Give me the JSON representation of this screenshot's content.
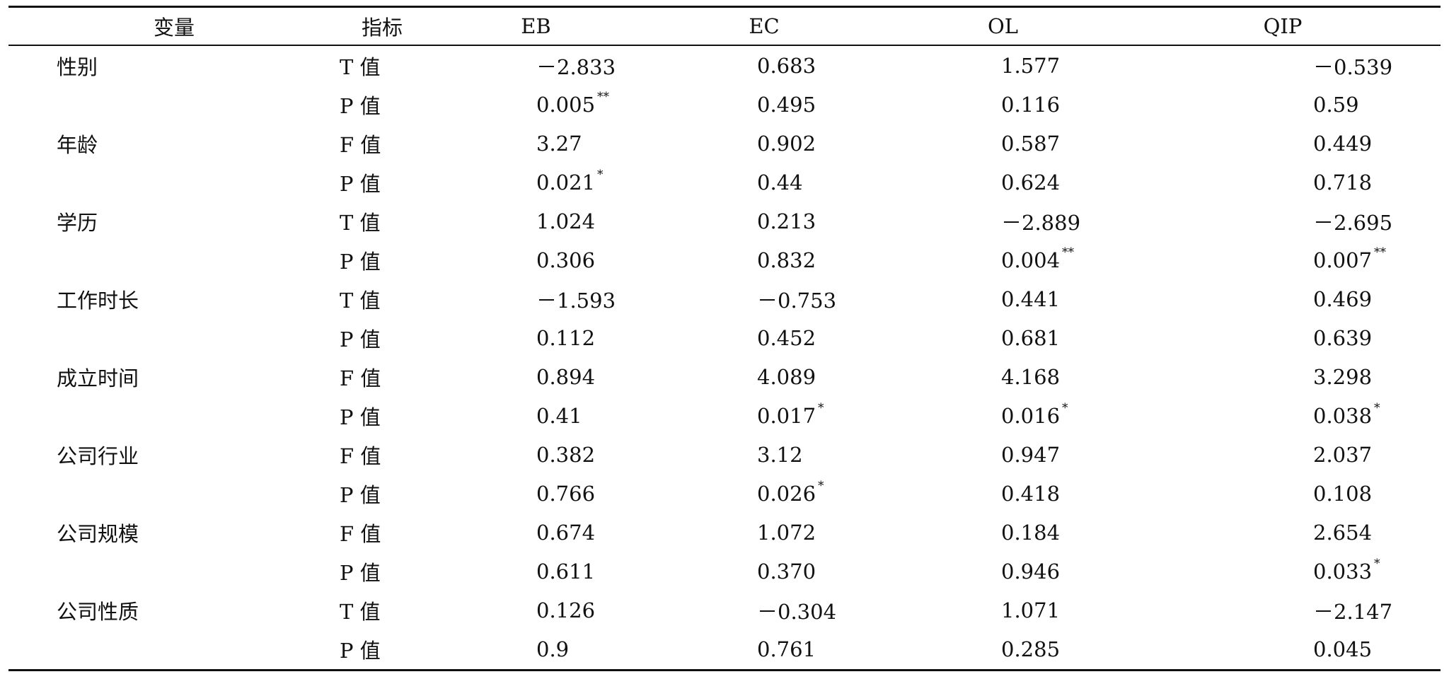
{
  "headers": [
    "变量",
    "指标",
    "EB",
    "EC",
    "OL",
    "QIP"
  ],
  "rows": [
    {
      "variable": "性别",
      "indicator": "T 值",
      "eb": "－2.833",
      "eb_sig": "",
      "ec": "0.683",
      "ec_sig": "",
      "ol": "1.577",
      "ol_sig": "",
      "qip": "－0.539",
      "qip_sig": ""
    },
    {
      "variable": "",
      "indicator": "P 值",
      "eb": "0.005",
      "eb_sig": "**",
      "ec": "0.495",
      "ec_sig": "",
      "ol": "0.116",
      "ol_sig": "",
      "qip": "0.59",
      "qip_sig": ""
    },
    {
      "variable": "年龄",
      "indicator": "F 值",
      "eb": "3.27",
      "eb_sig": "",
      "ec": "0.902",
      "ec_sig": "",
      "ol": "0.587",
      "ol_sig": "",
      "qip": "0.449",
      "qip_sig": ""
    },
    {
      "variable": "",
      "indicator": "P 值",
      "eb": "0.021",
      "eb_sig": "*",
      "ec": "0.44",
      "ec_sig": "",
      "ol": "0.624",
      "ol_sig": "",
      "qip": "0.718",
      "qip_sig": ""
    },
    {
      "variable": "学历",
      "indicator": "T 值",
      "eb": "1.024",
      "eb_sig": "",
      "ec": "0.213",
      "ec_sig": "",
      "ol": "－2.889",
      "ol_sig": "",
      "qip": "－2.695",
      "qip_sig": ""
    },
    {
      "variable": "",
      "indicator": "P 值",
      "eb": "0.306",
      "eb_sig": "",
      "ec": "0.832",
      "ec_sig": "",
      "ol": "0.004",
      "ol_sig": "**",
      "qip": "0.007",
      "qip_sig": "**"
    },
    {
      "variable": "工作时长",
      "indicator": "T 值",
      "eb": "－1.593",
      "eb_sig": "",
      "ec": "－0.753",
      "ec_sig": "",
      "ol": "0.441",
      "ol_sig": "",
      "qip": "0.469",
      "qip_sig": ""
    },
    {
      "variable": "",
      "indicator": "P 值",
      "eb": "0.112",
      "eb_sig": "",
      "ec": "0.452",
      "ec_sig": "",
      "ol": "0.681",
      "ol_sig": "",
      "qip": "0.639",
      "qip_sig": ""
    },
    {
      "variable": "成立时间",
      "indicator": "F 值",
      "eb": "0.894",
      "eb_sig": "",
      "ec": "4.089",
      "ec_sig": "",
      "ol": "4.168",
      "ol_sig": "",
      "qip": "3.298",
      "qip_sig": ""
    },
    {
      "variable": "",
      "indicator": "P 值",
      "eb": "0.41",
      "eb_sig": "",
      "ec": "0.017",
      "ec_sig": "*",
      "ol": "0.016",
      "ol_sig": "*",
      "qip": "0.038",
      "qip_sig": "*"
    },
    {
      "variable": "公司行业",
      "indicator": "F 值",
      "eb": "0.382",
      "eb_sig": "",
      "ec": "3.12",
      "ec_sig": "",
      "ol": "0.947",
      "ol_sig": "",
      "qip": "2.037",
      "qip_sig": ""
    },
    {
      "variable": "",
      "indicator": "P 值",
      "eb": "0.766",
      "eb_sig": "",
      "ec": "0.026",
      "ec_sig": "*",
      "ol": "0.418",
      "ol_sig": "",
      "qip": "0.108",
      "qip_sig": ""
    },
    {
      "variable": "公司规模",
      "indicator": "F 值",
      "eb": "0.674",
      "eb_sig": "",
      "ec": "1.072",
      "ec_sig": "",
      "ol": "0.184",
      "ol_sig": "",
      "qip": "2.654",
      "qip_sig": ""
    },
    {
      "variable": "",
      "indicator": "P 值",
      "eb": "0.611",
      "eb_sig": "",
      "ec": "0.370",
      "ec_sig": "",
      "ol": "0.946",
      "ol_sig": "",
      "qip": "0.033",
      "qip_sig": "*"
    },
    {
      "variable": "公司性质",
      "indicator": "T 值",
      "eb": "0.126",
      "eb_sig": "",
      "ec": "－0.304",
      "ec_sig": "",
      "ol": "1.071",
      "ol_sig": "",
      "qip": "－2.147",
      "qip_sig": ""
    },
    {
      "variable": "",
      "indicator": "P 值",
      "eb": "0.9",
      "eb_sig": "",
      "ec": "0.761",
      "ec_sig": "",
      "ol": "0.285",
      "ol_sig": "",
      "qip": "0.045",
      "qip_sig": ""
    }
  ]
}
